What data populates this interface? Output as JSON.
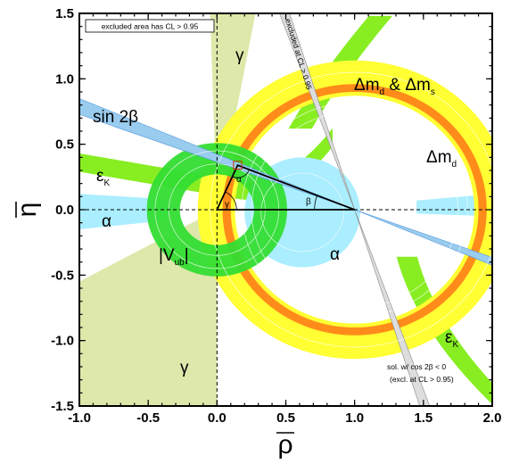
{
  "chart_data": {
    "type": "area",
    "x_axis": {
      "label_symbol": "ρ",
      "range": [
        -1.0,
        2.0
      ],
      "ticks": [
        "-1.0",
        "-0.5",
        "0.0",
        "0.5",
        "1.0",
        "1.5",
        "2.0"
      ]
    },
    "y_axis": {
      "label_symbol": "η",
      "range": [
        -1.5,
        1.5
      ],
      "ticks": [
        "-1.5",
        "-1.0",
        "-0.5",
        "0.0",
        "0.5",
        "1.0",
        "1.5"
      ]
    },
    "legend_note": "excluded area has CL > 0.95",
    "solution_note_line1": "sol. w/ cos 2β < 0",
    "solution_note_line2": "(excl. at CL > 0.95)",
    "band_label_sin2b": "excluded at CL > 0.95",
    "apex": {
      "rho": 0.15,
      "eta": 0.34
    },
    "constraints": [
      {
        "id": "dmd",
        "kind": "ring",
        "center": [
          1.0,
          0.0
        ],
        "r_inner": 0.87,
        "r_outer": 1.14,
        "color": "#ffff33"
      },
      {
        "id": "dmd_dms",
        "kind": "ring",
        "center": [
          1.0,
          0.0
        ],
        "r_inner": 0.9,
        "r_outer": 0.96,
        "color": "#ff8c1a"
      },
      {
        "id": "vub",
        "kind": "ring",
        "center": [
          0.0,
          0.0
        ],
        "r_inner": 0.27,
        "r_outer": 0.51,
        "color": "#33dd33"
      },
      {
        "id": "sin2b",
        "kind": "wedge",
        "apex": [
          1.0,
          0.0
        ],
        "angles_deg": [
          20.0,
          23.0
        ],
        "color": "#99ccee"
      },
      {
        "id": "alpha",
        "kind": "region",
        "color": "#aaeeff"
      },
      {
        "id": "gamma",
        "kind": "wedge",
        "apex": [
          0.0,
          0.0
        ],
        "color": "#dde8aa"
      },
      {
        "id": "epsK",
        "kind": "hyperbola-band",
        "color": "#88ee22"
      }
    ],
    "labels": {
      "sin2b": "sin 2β",
      "gamma_top": "γ",
      "gamma_bottom": "γ",
      "dmd_dms": "Δm",
      "dmd_dms_sub1": "d",
      "dmd_dms_amp": " & Δm",
      "dmd_dms_sub2": "s",
      "dmd": "Δm",
      "dmd_sub": "d",
      "epsK_left": "ε",
      "epsK_left_sub": "K",
      "epsK_right": "ε",
      "epsK_right_sub": "K",
      "alpha_left": "α",
      "alpha_right": "α",
      "vub": "|V",
      "vub_sub": "ub",
      "vub_end": "|",
      "tri_alpha": "α",
      "tri_beta": "β",
      "tri_gamma": "γ"
    }
  }
}
